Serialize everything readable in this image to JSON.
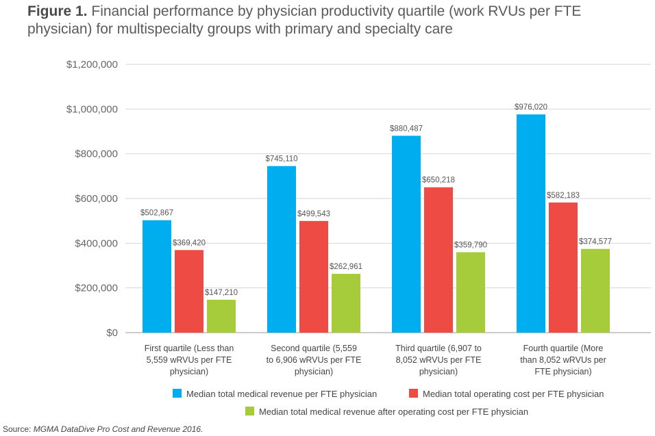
{
  "chart_data": {
    "type": "bar",
    "title_prefix": "Figure 1.",
    "title": "Financial performance by physician productivity quartile (work RVUs per FTE physician) for multispecialty groups with primary and specialty care",
    "categories": [
      [
        "First quartile (Less than",
        "5,559 wRVUs per FTE",
        "physician)"
      ],
      [
        "Second quartile (5,559",
        "to 6,906 wRVUs per FTE",
        "physician)"
      ],
      [
        "Third quartile (6,907 to",
        "8,052 wRVUs per FTE",
        "physician)"
      ],
      [
        "Fourth quartile (More",
        "than 8,052 wRVUs per",
        "FTE physician)"
      ]
    ],
    "series": [
      {
        "name": "Median total medical revenue per FTE physician",
        "color": "#00adef",
        "values": [
          502867,
          745110,
          880487,
          976020
        ],
        "labels": [
          "$502,867",
          "$745,110",
          "$880,487",
          "$976,020"
        ]
      },
      {
        "name": "Median total operating cost per FTE physician",
        "color": "#ef4b45",
        "values": [
          369420,
          499543,
          650218,
          582183
        ],
        "labels": [
          "$369,420",
          "$499,543",
          "$650,218",
          "$582,183"
        ]
      },
      {
        "name": "Median total medical revenue after operating cost per FTE physician",
        "color": "#a6cc3b",
        "values": [
          147210,
          262961,
          359790,
          374577
        ],
        "labels": [
          "$147,210",
          "$262,961",
          "$359,790",
          "$374,577"
        ]
      }
    ],
    "ylim": [
      0,
      1200000
    ],
    "yticks": [
      0,
      200000,
      400000,
      600000,
      800000,
      1000000,
      1200000
    ],
    "ytick_labels": [
      "$0",
      "$200,000",
      "$400,000",
      "$600,000",
      "$800,000",
      "$1,000,000",
      "$1,200,000"
    ],
    "grid": true,
    "legend_placement": "bottom"
  },
  "source_prefix": "Source: ",
  "source_text": "MGMA DataDive Pro Cost and Revenue 2016."
}
